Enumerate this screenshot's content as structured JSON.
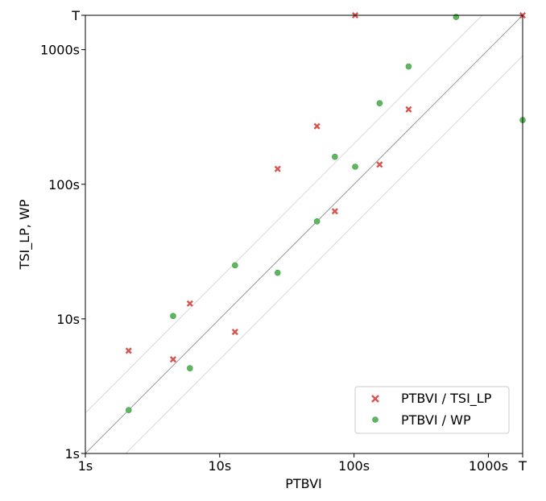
{
  "chart_data": {
    "type": "scatter",
    "title": "",
    "xlabel": "PTBVI",
    "ylabel": "TSI_LP, WP",
    "x_scale": "log",
    "y_scale": "log",
    "xlim": [
      1,
      1800
    ],
    "ylim": [
      1,
      1800
    ],
    "x_ticks": [
      {
        "value": 1,
        "label": "1s"
      },
      {
        "value": 10,
        "label": "10s"
      },
      {
        "value": 100,
        "label": "100s"
      },
      {
        "value": 1000,
        "label": "1000s"
      },
      {
        "value": 1800,
        "label": "T"
      }
    ],
    "y_ticks": [
      {
        "value": 1,
        "label": "1s"
      },
      {
        "value": 10,
        "label": "10s"
      },
      {
        "value": 100,
        "label": "100s"
      },
      {
        "value": 1000,
        "label": "1000s"
      },
      {
        "value": 1800,
        "label": "T"
      }
    ],
    "grid": false,
    "reference_lines": [
      {
        "kind": "y=x",
        "color": "#999999"
      },
      {
        "kind": "y=2x",
        "color": "#d9d9d9"
      },
      {
        "kind": "y=x/2",
        "color": "#d9d9d9"
      }
    ],
    "legend_position": "lower-right",
    "series": [
      {
        "name": "PTBVI / TSI_LP",
        "marker": "x",
        "color": "#d9534f",
        "points": [
          {
            "x": 2.1,
            "y": 5.8
          },
          {
            "x": 4.5,
            "y": 5.0
          },
          {
            "x": 6.0,
            "y": 13.0
          },
          {
            "x": 13.0,
            "y": 8.0
          },
          {
            "x": 27,
            "y": 130
          },
          {
            "x": 53,
            "y": 270
          },
          {
            "x": 72,
            "y": 63
          },
          {
            "x": 102,
            "y": 1800
          },
          {
            "x": 155,
            "y": 140
          },
          {
            "x": 255,
            "y": 360
          },
          {
            "x": 1800,
            "y": 1800
          }
        ]
      },
      {
        "name": "PTBVI / WP",
        "marker": "o",
        "color": "#5cb85c",
        "points": [
          {
            "x": 2.1,
            "y": 2.1
          },
          {
            "x": 4.5,
            "y": 10.5
          },
          {
            "x": 6.0,
            "y": 4.3
          },
          {
            "x": 13.0,
            "y": 25
          },
          {
            "x": 27,
            "y": 22
          },
          {
            "x": 53,
            "y": 53
          },
          {
            "x": 72,
            "y": 160
          },
          {
            "x": 102,
            "y": 135
          },
          {
            "x": 155,
            "y": 400
          },
          {
            "x": 255,
            "y": 750
          },
          {
            "x": 575,
            "y": 1750
          },
          {
            "x": 1800,
            "y": 300
          }
        ]
      }
    ]
  }
}
